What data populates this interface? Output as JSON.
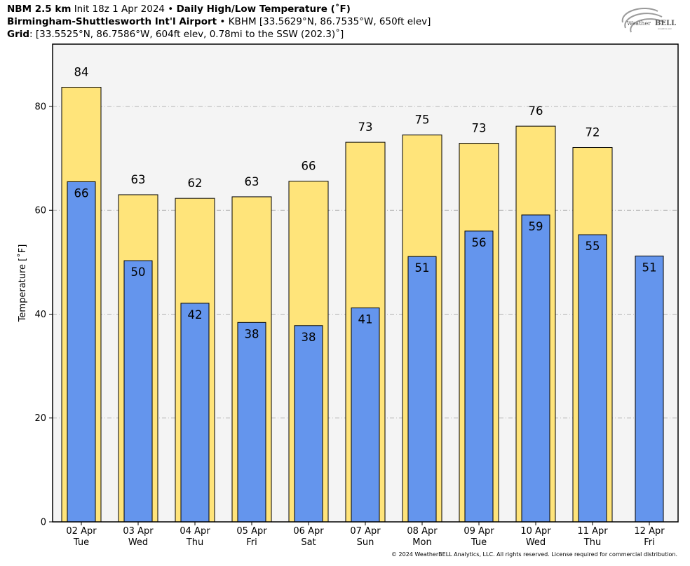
{
  "header": {
    "model": "NBM 2.5 km",
    "init": "Init 18z 1 Apr 2024",
    "bullet": "•",
    "product": "Daily High/Low Temperature (˚F)",
    "station_name": "Birmingham-Shuttlesworth Int'l Airport",
    "station_info": "KBHM [33.5629°N, 86.7535°W, 650ft elev]",
    "grid_label": "Grid",
    "grid_info": ": [33.5525°N, 86.7586°W, 604ft elev, 0.78mi to the SSW (202.3)˚]"
  },
  "logo": {
    "text_a": "Weather",
    "text_b": "BELL",
    "sub": "Analytics LLC"
  },
  "footer": "© 2024 WeatherBELL Analytics, LLC. All rights reserved. License required for commercial distribution.",
  "colors": {
    "high": "#FFE47A",
    "low": "#6495ED",
    "plot_bg": "#F4F4F4"
  },
  "chart_data": {
    "type": "bar",
    "ylabel": "Temperature [˚F]",
    "xlabel": "",
    "ylim": [
      0,
      92
    ],
    "yticks": [
      0,
      20,
      40,
      60,
      80
    ],
    "grid": true,
    "categories": [
      "02 Apr",
      "03 Apr",
      "04 Apr",
      "05 Apr",
      "06 Apr",
      "07 Apr",
      "08 Apr",
      "09 Apr",
      "10 Apr",
      "11 Apr",
      "12 Apr"
    ],
    "weekdays": [
      "Tue",
      "Wed",
      "Thu",
      "Fri",
      "Sat",
      "Sun",
      "Mon",
      "Tue",
      "Wed",
      "Thu",
      "Fri"
    ],
    "series": [
      {
        "key": "high",
        "values": [
          84,
          63,
          62,
          63,
          66,
          73,
          75,
          73,
          76,
          72,
          null
        ],
        "display": [
          "84",
          "63",
          "62",
          "63",
          "66",
          "73",
          "75",
          "73",
          "76",
          "72",
          ""
        ],
        "exact": [
          83.7,
          63.0,
          62.3,
          62.6,
          65.6,
          73.1,
          74.5,
          72.9,
          76.2,
          72.1,
          null
        ]
      },
      {
        "key": "low",
        "values": [
          66,
          50,
          42,
          38,
          38,
          41,
          51,
          56,
          59,
          55,
          51
        ],
        "display": [
          "66",
          "50",
          "42",
          "38",
          "38",
          "41",
          "51",
          "56",
          "59",
          "55",
          "51"
        ],
        "exact": [
          65.5,
          50.3,
          42.1,
          38.4,
          37.8,
          41.2,
          51.1,
          56.0,
          59.1,
          55.3,
          51.2
        ]
      }
    ]
  }
}
